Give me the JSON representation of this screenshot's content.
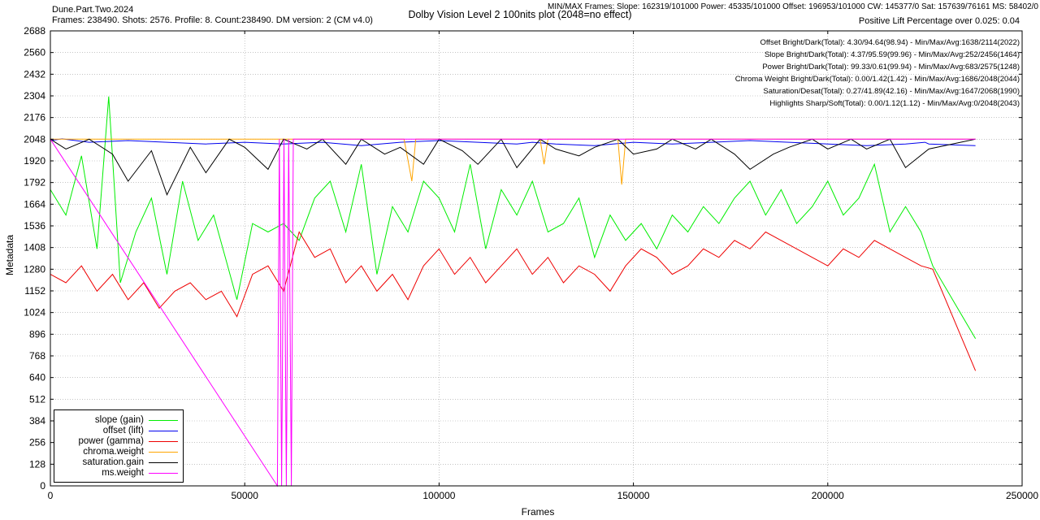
{
  "header": {
    "title": "Dolby Vision Level 2 100nits plot (2048=no effect)",
    "left_line1": "Dune.Part.Two.2024",
    "left_line2": "Frames: 238490. Shots: 2576. Profile: 8. Count:238490. DM version: 2 (CM v4.0)",
    "right_line1": "MIN/MAX Frames: Slope: 162319/101000 Power: 45335/101000 Offset: 196953/101000 CW: 145377/0 Sat: 157639/76161 MS: 58402/0",
    "right_line2": "Positive Lift Percentage over 0.025: 0.04"
  },
  "stats": [
    "Offset Bright/Dark(Total): 4.30/94.64(98.94) - Min/Max/Avg:1638/2114(2022)",
    "Slope Bright/Dark(Total): 4.37/95.59(99.96) - Min/Max/Avg:252/2456(1464)",
    "Power Bright/Dark(Total): 99.33/0.61(99.94) - Min/Max/Avg:683/2575(1248)",
    "Chroma Weight Bright/Dark(Total): 0.00/1.42(1.42) - Min/Max/Avg:1686/2048(2044)",
    "Saturation/Desat(Total): 0.27/41.89(42.16) - Min/Max/Avg:1647/2068(1990)",
    "Highlights Sharp/Soft(Total): 0.00/1.12(1.12) - Min/Max/Avg:0/2048(2043)"
  ],
  "chart_data": {
    "type": "line",
    "title": "Dolby Vision Level 2 100nits plot (2048=no effect)",
    "xlabel": "Frames",
    "ylabel": "Metadata",
    "xlim": [
      0,
      250000
    ],
    "ylim": [
      0,
      2688
    ],
    "x_ticks": [
      0,
      50000,
      100000,
      150000,
      200000,
      250000
    ],
    "x_tick_labels": [
      "0",
      "50000",
      "100000",
      "150000",
      "200000",
      "250000"
    ],
    "y_ticks": [
      0,
      128,
      256,
      384,
      512,
      640,
      768,
      896,
      1024,
      1152,
      1280,
      1408,
      1536,
      1664,
      1792,
      1920,
      2048,
      2176,
      2304,
      2432,
      2560,
      2688
    ],
    "grid": true,
    "legend_position": "bottom-left",
    "series": [
      {
        "name": "slope (gain)",
        "color": "#00ee00",
        "x": [
          0,
          4000,
          8000,
          12000,
          15000,
          18000,
          22000,
          26000,
          30000,
          34000,
          38000,
          42000,
          45000,
          48000,
          52000,
          56000,
          60000,
          64000,
          68000,
          72000,
          76000,
          80000,
          84000,
          88000,
          92000,
          96000,
          100000,
          104000,
          108000,
          112000,
          116000,
          120000,
          124000,
          128000,
          132000,
          136000,
          140000,
          144000,
          148000,
          152000,
          156000,
          160000,
          164000,
          168000,
          172000,
          176000,
          180000,
          184000,
          188000,
          192000,
          196000,
          200000,
          204000,
          208000,
          212000,
          216000,
          220000,
          224000,
          227000,
          238000
        ],
        "y": [
          1750,
          1600,
          1950,
          1400,
          2300,
          1200,
          1500,
          1700,
          1250,
          1800,
          1450,
          1600,
          1350,
          1100,
          1550,
          1500,
          1550,
          1450,
          1700,
          1800,
          1500,
          1900,
          1250,
          1650,
          1500,
          1800,
          1700,
          1500,
          1900,
          1400,
          1750,
          1600,
          1800,
          1500,
          1550,
          1700,
          1350,
          1600,
          1450,
          1550,
          1400,
          1600,
          1500,
          1650,
          1550,
          1700,
          1800,
          1600,
          1750,
          1550,
          1650,
          1800,
          1600,
          1700,
          1900,
          1500,
          1650,
          1500,
          1300,
          870
        ]
      },
      {
        "name": "offset (lift)",
        "color": "#0000ee",
        "x": [
          0,
          3000,
          10000,
          20000,
          30000,
          40000,
          50000,
          60000,
          70000,
          80000,
          90000,
          100000,
          110000,
          120000,
          124000,
          130000,
          140000,
          150000,
          160000,
          170000,
          180000,
          190000,
          200000,
          210000,
          220000,
          225000,
          226000,
          238000
        ],
        "y": [
          2040,
          2050,
          2030,
          2040,
          2030,
          2020,
          2030,
          2020,
          2030,
          2010,
          2030,
          2040,
          2030,
          2020,
          2030,
          2020,
          2010,
          2030,
          2020,
          2030,
          2040,
          2030,
          2020,
          2010,
          2020,
          2030,
          2020,
          2010
        ]
      },
      {
        "name": "power (gamma)",
        "color": "#ee0000",
        "x": [
          0,
          4000,
          8000,
          12000,
          16000,
          20000,
          24000,
          28000,
          32000,
          36000,
          40000,
          44000,
          48000,
          52000,
          56000,
          60000,
          64000,
          68000,
          72000,
          76000,
          80000,
          84000,
          88000,
          92000,
          96000,
          100000,
          104000,
          108000,
          112000,
          116000,
          120000,
          124000,
          128000,
          132000,
          136000,
          140000,
          144000,
          148000,
          152000,
          156000,
          160000,
          164000,
          168000,
          172000,
          176000,
          180000,
          184000,
          188000,
          192000,
          196000,
          200000,
          204000,
          208000,
          212000,
          216000,
          220000,
          224000,
          227000,
          238000
        ],
        "y": [
          1250,
          1200,
          1300,
          1150,
          1250,
          1100,
          1200,
          1050,
          1150,
          1200,
          1100,
          1150,
          1000,
          1250,
          1300,
          1150,
          1500,
          1350,
          1400,
          1200,
          1300,
          1150,
          1250,
          1100,
          1300,
          1400,
          1250,
          1350,
          1200,
          1300,
          1400,
          1250,
          1350,
          1200,
          1300,
          1250,
          1150,
          1300,
          1400,
          1350,
          1250,
          1300,
          1400,
          1350,
          1450,
          1400,
          1500,
          1450,
          1400,
          1350,
          1300,
          1400,
          1350,
          1450,
          1400,
          1350,
          1300,
          1280,
          680
        ]
      },
      {
        "name": "chroma.weight",
        "color": "#ffa500",
        "x": [
          0,
          91000,
          93000,
          94000,
          126000,
          127000,
          128000,
          146000,
          147000,
          148000,
          238000
        ],
        "y": [
          2048,
          2048,
          1800,
          2048,
          2048,
          1900,
          2048,
          2048,
          1780,
          2048,
          2048
        ]
      },
      {
        "name": "saturation.gain",
        "color": "#000000",
        "x": [
          0,
          4000,
          10000,
          16000,
          20000,
          26000,
          30000,
          36000,
          40000,
          46000,
          50000,
          56000,
          60000,
          66000,
          70000,
          76000,
          80000,
          86000,
          90000,
          96000,
          100000,
          106000,
          110000,
          116000,
          120000,
          126000,
          130000,
          136000,
          140000,
          146000,
          150000,
          156000,
          160000,
          166000,
          170000,
          176000,
          180000,
          186000,
          190000,
          196000,
          200000,
          206000,
          210000,
          216000,
          220000,
          226000,
          238000
        ],
        "y": [
          2048,
          1990,
          2048,
          1960,
          1800,
          1980,
          1720,
          2000,
          1850,
          2048,
          2000,
          1870,
          2048,
          1990,
          2048,
          1900,
          2048,
          1960,
          2000,
          1900,
          2048,
          1980,
          1900,
          2048,
          1880,
          2048,
          1990,
          1950,
          2000,
          2048,
          1960,
          1990,
          2048,
          1990,
          2048,
          1960,
          1870,
          1960,
          2000,
          2048,
          1990,
          2048,
          1990,
          2048,
          1880,
          1990,
          2048
        ]
      },
      {
        "name": "ms.weight",
        "color": "#ff00ff",
        "x": [
          0,
          58402,
          58900,
          59500,
          60100,
          60700,
          61300,
          62000,
          62500,
          238000
        ],
        "y": [
          2048,
          0,
          2048,
          0,
          2048,
          0,
          2048,
          0,
          2048,
          2048
        ]
      }
    ]
  }
}
